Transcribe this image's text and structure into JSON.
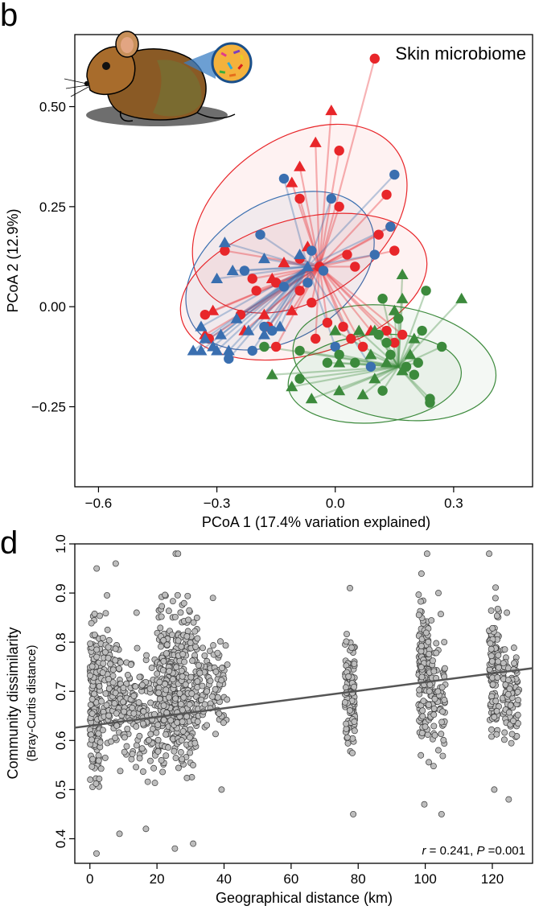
{
  "panels": {
    "b": {
      "letter": "b"
    },
    "d": {
      "letter": "d"
    }
  },
  "chart_data": [
    {
      "type": "scatter",
      "panel": "b",
      "title": "Skin microbiome",
      "xlabel": "PCoA 1 (17.4% variation explained)",
      "ylabel": "PCoA 2 (12.9%)",
      "xlim": [
        -0.66,
        0.5
      ],
      "ylim": [
        -0.45,
        0.68
      ],
      "xticks": [
        -0.6,
        -0.3,
        0.0,
        0.3
      ],
      "xtick_labels": [
        "−0.6",
        "−0.3",
        "0.0",
        "0.3"
      ],
      "yticks": [
        -0.25,
        0.0,
        0.25,
        0.5
      ],
      "ytick_labels": [
        "−0.25",
        "0.00",
        "0.25",
        "0.50"
      ],
      "grid": false,
      "legend": "none",
      "colors": {
        "red": "#e8262a",
        "blue": "#3a6fb0",
        "green": "#3c8a3c"
      },
      "ellipses": [
        {
          "color": "red",
          "cx": -0.09,
          "cy": 0.22,
          "rx": 0.3,
          "ry": 0.2,
          "angle_deg": -35
        },
        {
          "color": "blue",
          "cx": -0.14,
          "cy": 0.09,
          "rx": 0.26,
          "ry": 0.17,
          "angle_deg": -32
        },
        {
          "color": "red",
          "cx": -0.08,
          "cy": 0.05,
          "rx": 0.32,
          "ry": 0.17,
          "angle_deg": -15
        },
        {
          "color": "green",
          "cx": 0.15,
          "cy": -0.14,
          "rx": 0.26,
          "ry": 0.14,
          "angle_deg": 10
        },
        {
          "color": "green",
          "cx": 0.1,
          "cy": -0.18,
          "rx": 0.22,
          "ry": 0.11,
          "angle_deg": -5
        }
      ],
      "centroids": [
        {
          "color": "red",
          "x": -0.04,
          "y": 0.1
        },
        {
          "color": "blue",
          "x": -0.07,
          "y": 0.1
        },
        {
          "color": "green",
          "x": 0.16,
          "y": -0.15
        }
      ],
      "series": [
        {
          "color": "red",
          "marker": "circle",
          "points": [
            [
              0.1,
              0.62
            ],
            [
              0.01,
              0.39
            ],
            [
              -0.09,
              0.27
            ],
            [
              0.11,
              0.18
            ],
            [
              0.13,
              0.28
            ],
            [
              0.01,
              0.25
            ],
            [
              -0.09,
              0.12
            ],
            [
              -0.04,
              0.1
            ],
            [
              0.03,
              0.13
            ],
            [
              0.05,
              0.1
            ],
            [
              0.14,
              0.2
            ],
            [
              0.15,
              0.14
            ],
            [
              -0.28,
              0.14
            ],
            [
              -0.21,
              0.07
            ],
            [
              -0.15,
              0.06
            ],
            [
              -0.09,
              0.04
            ],
            [
              -0.06,
              0.01
            ],
            [
              -0.2,
              0.04
            ],
            [
              -0.24,
              -0.02
            ],
            [
              -0.32,
              -0.08
            ],
            [
              -0.33,
              -0.02
            ],
            [
              -0.17,
              -0.05
            ],
            [
              -0.15,
              -0.1
            ],
            [
              -0.05,
              -0.08
            ],
            [
              -0.02,
              -0.04
            ],
            [
              0.02,
              -0.05
            ],
            [
              0.04,
              -0.08
            ],
            [
              0.07,
              -0.1
            ],
            [
              0.13,
              -0.06
            ],
            [
              0.15,
              -0.09
            ],
            [
              0.17,
              -0.07
            ]
          ]
        },
        {
          "color": "red",
          "marker": "triangle",
          "points": [
            [
              -0.01,
              0.49
            ],
            [
              -0.05,
              0.41
            ],
            [
              -0.09,
              0.35
            ],
            [
              -0.11,
              0.31
            ],
            [
              -0.13,
              0.11
            ],
            [
              -0.07,
              0.15
            ],
            [
              -0.31,
              -0.01
            ],
            [
              -0.33,
              -0.07
            ],
            [
              -0.23,
              -0.06
            ],
            [
              -0.18,
              -0.02
            ],
            [
              -0.11,
              -0.01
            ],
            [
              -0.16,
              0.07
            ],
            [
              0.09,
              -0.06
            ]
          ]
        },
        {
          "color": "blue",
          "marker": "circle",
          "points": [
            [
              -0.13,
              0.32
            ],
            [
              0.15,
              0.33
            ],
            [
              -0.01,
              0.27
            ],
            [
              0.14,
              0.2
            ],
            [
              -0.19,
              0.18
            ],
            [
              -0.06,
              0.14
            ],
            [
              0.1,
              0.13
            ],
            [
              -0.23,
              0.09
            ],
            [
              -0.13,
              0.05
            ],
            [
              -0.07,
              0.06
            ],
            [
              -0.03,
              0.09
            ],
            [
              -0.18,
              -0.05
            ],
            [
              -0.16,
              -0.06
            ],
            [
              -0.21,
              -0.11
            ],
            [
              -0.27,
              -0.13
            ],
            [
              0.0,
              -0.1
            ],
            [
              0.09,
              -0.15
            ]
          ]
        },
        {
          "color": "blue",
          "marker": "triangle",
          "points": [
            [
              -0.28,
              0.16
            ],
            [
              -0.26,
              0.09
            ],
            [
              -0.3,
              0.07
            ],
            [
              -0.18,
              0.12
            ],
            [
              -0.09,
              0.13
            ],
            [
              -0.07,
              0.1
            ],
            [
              -0.25,
              -0.03
            ],
            [
              -0.22,
              -0.06
            ],
            [
              -0.18,
              -0.07
            ],
            [
              -0.14,
              -0.05
            ],
            [
              -0.34,
              -0.05
            ],
            [
              -0.33,
              -0.08
            ],
            [
              -0.31,
              -0.1
            ],
            [
              -0.29,
              -0.07
            ],
            [
              -0.36,
              -0.11
            ],
            [
              -0.34,
              -0.11
            ],
            [
              -0.3,
              -0.11
            ],
            [
              -0.27,
              -0.11
            ]
          ]
        },
        {
          "color": "green",
          "marker": "circle",
          "points": [
            [
              0.23,
              0.04
            ],
            [
              0.27,
              -0.1
            ],
            [
              0.22,
              -0.06
            ],
            [
              0.16,
              -0.03
            ],
            [
              0.13,
              -0.09
            ],
            [
              0.11,
              -0.07
            ],
            [
              0.12,
              0.02
            ],
            [
              0.01,
              -0.12
            ],
            [
              -0.02,
              -0.14
            ],
            [
              -0.09,
              -0.11
            ],
            [
              -0.18,
              -0.1
            ],
            [
              -0.09,
              -0.18
            ],
            [
              0.05,
              -0.14
            ],
            [
              0.14,
              -0.12
            ],
            [
              0.21,
              -0.14
            ],
            [
              0.2,
              -0.17
            ],
            [
              0.18,
              -0.15
            ],
            [
              0.24,
              -0.23
            ],
            [
              0.24,
              -0.24
            ],
            [
              0.12,
              -0.21
            ]
          ]
        },
        {
          "color": "green",
          "marker": "triangle",
          "points": [
            [
              0.32,
              0.02
            ],
            [
              0.17,
              0.08
            ],
            [
              0.17,
              0.02
            ],
            [
              0.15,
              -0.01
            ],
            [
              0.1,
              -0.06
            ],
            [
              0.06,
              -0.06
            ],
            [
              0.0,
              -0.06
            ],
            [
              0.01,
              -0.14
            ],
            [
              0.09,
              -0.12
            ],
            [
              0.13,
              -0.14
            ],
            [
              0.2,
              -0.08
            ],
            [
              0.1,
              -0.18
            ],
            [
              0.07,
              -0.22
            ],
            [
              0.01,
              -0.21
            ],
            [
              -0.11,
              -0.2
            ],
            [
              -0.06,
              -0.23
            ],
            [
              -0.16,
              -0.17
            ],
            [
              0.17,
              -0.16
            ],
            [
              0.19,
              -0.12
            ]
          ]
        }
      ]
    },
    {
      "type": "scatter",
      "panel": "d",
      "xlabel": "Geographical distance (km)",
      "ylabel": "Community dissimilarity",
      "ylabel_sub": "(Bray-Curtis distance)",
      "xlim": [
        -4.5,
        132
      ],
      "ylim": [
        0.35,
        1.0
      ],
      "xticks": [
        0,
        20,
        40,
        60,
        80,
        100,
        120
      ],
      "yticks": [
        0.4,
        0.5,
        0.6,
        0.7,
        0.8,
        0.9,
        1.0
      ],
      "grid": false,
      "legend": "none",
      "stat_r_value": "0.241",
      "stat_p_value": "0.001",
      "stat_r_symbol": "r",
      "stat_p_symbol": "P",
      "regression": {
        "x": [
          -4.5,
          132
        ],
        "y": [
          0.626,
          0.747
        ],
        "color": "#555555"
      },
      "point_color": "#bdbdbd",
      "point_edge": "#3a3a3a",
      "clusters": [
        {
          "x_range": [
            0,
            3
          ],
          "y_range": [
            0.37,
            0.95
          ],
          "n": 180
        },
        {
          "x_range": [
            3,
            9
          ],
          "y_range": [
            0.41,
            0.96
          ],
          "n": 110
        },
        {
          "x_range": [
            9,
            20
          ],
          "y_range": [
            0.42,
            0.86
          ],
          "n": 150
        },
        {
          "x_range": [
            20,
            26
          ],
          "y_range": [
            0.38,
            0.98
          ],
          "n": 230
        },
        {
          "x_range": [
            26,
            32
          ],
          "y_range": [
            0.39,
            0.98
          ],
          "n": 170
        },
        {
          "x_range": [
            32,
            41
          ],
          "y_range": [
            0.5,
            0.89
          ],
          "n": 90
        },
        {
          "x_range": [
            76,
            79
          ],
          "y_range": [
            0.45,
            0.91
          ],
          "n": 110
        },
        {
          "x_range": [
            98,
            101
          ],
          "y_range": [
            0.47,
            0.98
          ],
          "n": 140
        },
        {
          "x_range": [
            101,
            106
          ],
          "y_range": [
            0.45,
            0.9
          ],
          "n": 90
        },
        {
          "x_range": [
            119,
            122
          ],
          "y_range": [
            0.5,
            0.98
          ],
          "n": 110
        },
        {
          "x_range": [
            123,
            128
          ],
          "y_range": [
            0.48,
            0.86
          ],
          "n": 90
        }
      ]
    }
  ]
}
